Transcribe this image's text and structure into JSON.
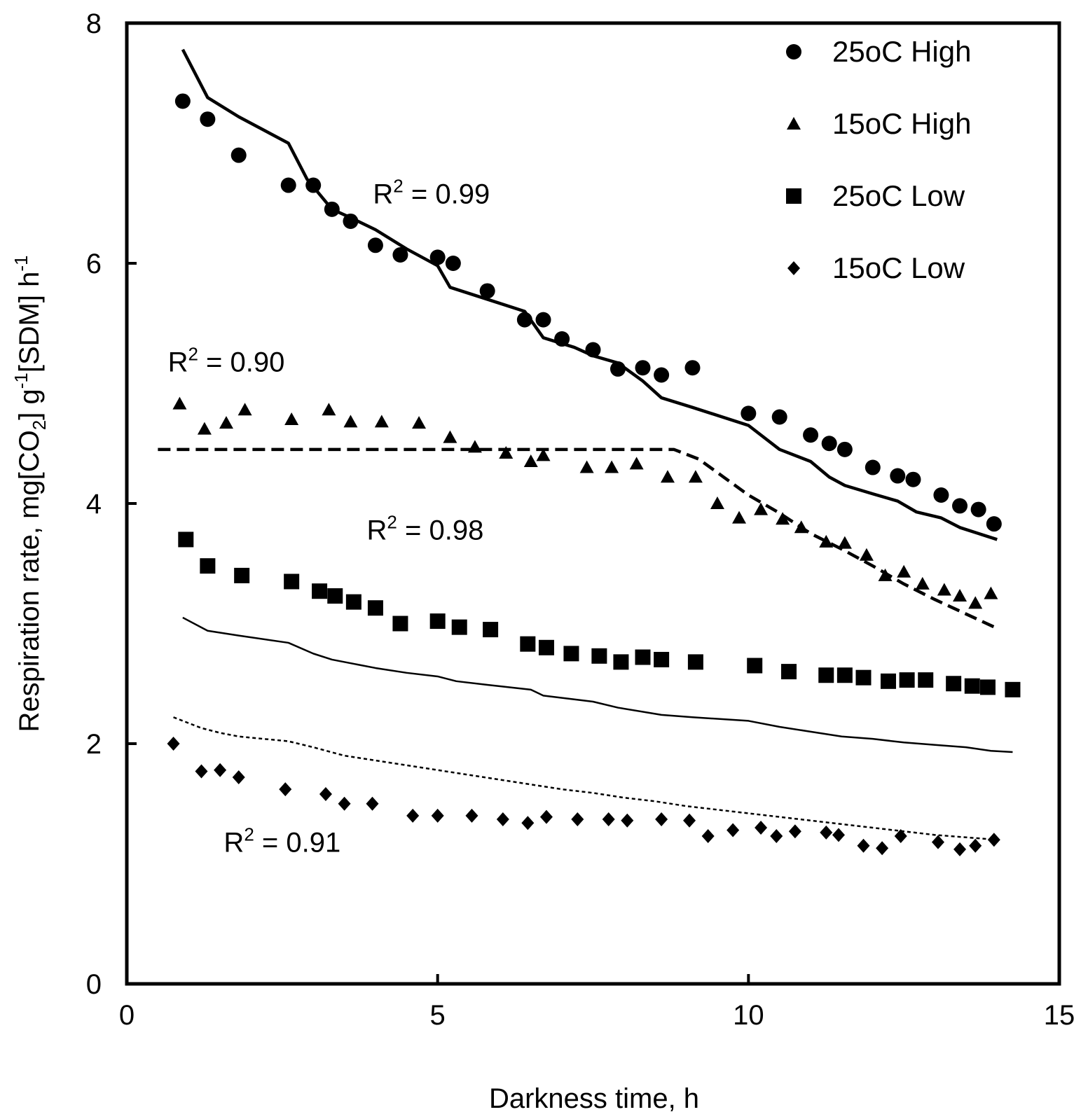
{
  "chart_data": {
    "type": "scatter",
    "title": "",
    "xlabel": "Darkness time, h",
    "ylabel": "Respiration rate, mg[CO2] g-1[SDM] h-1",
    "ylabel_parts": {
      "a": "Respiration rate, mg[CO",
      "sub2": "2",
      "b": "] g",
      "sup1": "-1",
      "c": "[SDM] h",
      "sup2": "-1"
    },
    "xlim": [
      0,
      15
    ],
    "ylim": [
      0,
      8
    ],
    "xticks": [
      0,
      5,
      10,
      15
    ],
    "yticks": [
      0,
      2,
      4,
      6,
      8
    ],
    "xtick_labels": [
      "0",
      "5",
      "10",
      "15"
    ],
    "ytick_labels": [
      "0",
      "2",
      "4",
      "6",
      "8"
    ],
    "grid": false,
    "legend_position": "top-right",
    "series": [
      {
        "name": "25oC High",
        "marker": "circle",
        "x": [
          0.9,
          1.3,
          1.8,
          2.6,
          3.0,
          3.3,
          3.6,
          4.0,
          4.4,
          5.0,
          5.25,
          5.8,
          6.4,
          6.7,
          7.0,
          7.5,
          7.9,
          8.3,
          8.6,
          9.1,
          10.0,
          10.5,
          11.0,
          11.3,
          11.55,
          12.0,
          12.4,
          12.65,
          13.1,
          13.4,
          13.7,
          13.95
        ],
        "y": [
          7.35,
          7.2,
          6.9,
          6.65,
          6.65,
          6.45,
          6.35,
          6.15,
          6.07,
          6.05,
          6.0,
          5.77,
          5.53,
          5.53,
          5.37,
          5.28,
          5.12,
          5.13,
          5.07,
          5.13,
          4.75,
          4.72,
          4.57,
          4.5,
          4.45,
          4.3,
          4.23,
          4.2,
          4.07,
          3.98,
          3.95,
          3.83
        ]
      },
      {
        "name": "15oC High",
        "marker": "triangle",
        "x": [
          0.85,
          1.25,
          1.6,
          1.9,
          2.65,
          3.25,
          3.6,
          4.1,
          4.7,
          5.2,
          5.6,
          6.1,
          6.5,
          6.7,
          7.4,
          7.8,
          8.2,
          8.7,
          9.15,
          9.5,
          9.85,
          10.2,
          10.55,
          10.85,
          11.25,
          11.55,
          11.9,
          12.2,
          12.5,
          12.8,
          13.15,
          13.4,
          13.65,
          13.9
        ],
        "y": [
          4.83,
          4.62,
          4.67,
          4.78,
          4.7,
          4.78,
          4.68,
          4.68,
          4.67,
          4.55,
          4.47,
          4.42,
          4.35,
          4.4,
          4.3,
          4.3,
          4.33,
          4.22,
          4.22,
          4.0,
          3.88,
          3.95,
          3.87,
          3.8,
          3.68,
          3.67,
          3.57,
          3.4,
          3.43,
          3.33,
          3.28,
          3.23,
          3.17,
          3.25
        ]
      },
      {
        "name": "25oC Low",
        "marker": "square",
        "x": [
          0.95,
          1.3,
          1.85,
          2.65,
          3.1,
          3.35,
          3.65,
          4.0,
          4.4,
          5.0,
          5.35,
          5.85,
          6.45,
          6.75,
          7.15,
          7.6,
          7.95,
          8.3,
          8.6,
          9.15,
          10.1,
          10.65,
          11.25,
          11.55,
          11.85,
          12.25,
          12.55,
          12.85,
          13.3,
          13.6,
          13.85,
          14.25
        ],
        "y": [
          3.7,
          3.48,
          3.4,
          3.35,
          3.27,
          3.23,
          3.18,
          3.13,
          3.0,
          3.02,
          2.97,
          2.95,
          2.83,
          2.8,
          2.75,
          2.73,
          2.68,
          2.72,
          2.7,
          2.68,
          2.65,
          2.6,
          2.57,
          2.57,
          2.55,
          2.52,
          2.53,
          2.53,
          2.5,
          2.48,
          2.47,
          2.45
        ]
      },
      {
        "name": "15oC Low",
        "marker": "diamond",
        "x": [
          0.75,
          1.2,
          1.5,
          1.8,
          2.55,
          3.2,
          3.5,
          3.95,
          4.6,
          5.0,
          5.55,
          6.05,
          6.45,
          6.75,
          7.25,
          7.75,
          8.05,
          8.6,
          9.05,
          9.35,
          9.75,
          10.2,
          10.45,
          10.75,
          11.25,
          11.45,
          11.85,
          12.15,
          12.45,
          13.05,
          13.4,
          13.65,
          13.95
        ],
        "y": [
          2.0,
          1.77,
          1.78,
          1.72,
          1.62,
          1.58,
          1.5,
          1.5,
          1.4,
          1.4,
          1.4,
          1.37,
          1.34,
          1.39,
          1.37,
          1.37,
          1.36,
          1.37,
          1.36,
          1.23,
          1.28,
          1.3,
          1.23,
          1.27,
          1.26,
          1.24,
          1.15,
          1.13,
          1.23,
          1.18,
          1.12,
          1.15,
          1.2
        ]
      }
    ],
    "fit_lines": [
      {
        "name": "25oC High fit",
        "style": "solid-thick",
        "x": [
          0.9,
          1.3,
          1.8,
          2.6,
          2.9,
          3.3,
          3.6,
          4.0,
          4.5,
          5.0,
          5.2,
          5.8,
          6.4,
          6.7,
          7.2,
          7.5,
          7.9,
          8.3,
          8.6,
          9.1,
          10.0,
          10.5,
          11.0,
          11.3,
          11.55,
          12.0,
          12.4,
          12.7,
          13.1,
          13.4,
          13.7,
          14.0
        ],
        "y": [
          7.78,
          7.38,
          7.22,
          7.0,
          6.7,
          6.45,
          6.38,
          6.28,
          6.12,
          5.98,
          5.8,
          5.7,
          5.6,
          5.38,
          5.3,
          5.23,
          5.17,
          5.02,
          4.88,
          4.8,
          4.65,
          4.45,
          4.35,
          4.22,
          4.15,
          4.08,
          4.02,
          3.93,
          3.88,
          3.8,
          3.75,
          3.7
        ]
      },
      {
        "name": "15oC High fit",
        "style": "dashed-thick",
        "x": [
          0.5,
          8.8,
          9.2,
          9.6,
          10.0,
          10.5,
          11.0,
          11.5,
          12.0,
          12.5,
          13.0,
          13.5,
          14.0
        ],
        "y": [
          4.45,
          4.45,
          4.37,
          4.22,
          4.07,
          3.92,
          3.75,
          3.62,
          3.48,
          3.33,
          3.2,
          3.08,
          2.96
        ]
      },
      {
        "name": "25oC Low fit",
        "style": "solid-thin",
        "x": [
          0.9,
          1.3,
          1.8,
          2.6,
          3.0,
          3.3,
          4.0,
          4.5,
          5.0,
          5.3,
          5.8,
          6.5,
          6.7,
          7.5,
          7.9,
          8.6,
          9.1,
          10.0,
          10.5,
          11.0,
          11.5,
          12.0,
          12.5,
          13.0,
          13.5,
          13.9,
          14.25
        ],
        "y": [
          3.05,
          2.94,
          2.9,
          2.84,
          2.75,
          2.7,
          2.63,
          2.59,
          2.56,
          2.52,
          2.49,
          2.45,
          2.4,
          2.35,
          2.3,
          2.24,
          2.22,
          2.19,
          2.14,
          2.1,
          2.06,
          2.04,
          2.01,
          1.99,
          1.97,
          1.94,
          1.93
        ]
      },
      {
        "name": "15oC Low fit",
        "style": "dotted",
        "x": [
          0.75,
          1.2,
          1.5,
          1.8,
          2.6,
          3.0,
          3.5,
          4.0,
          4.5,
          5.0,
          5.5,
          6.0,
          6.5,
          7.0,
          7.5,
          8.0,
          8.5,
          9.0,
          9.5,
          10.0,
          10.5,
          11.0,
          11.5,
          12.0,
          12.5,
          13.0,
          13.5,
          14.0
        ],
        "y": [
          2.22,
          2.13,
          2.09,
          2.06,
          2.02,
          1.97,
          1.9,
          1.86,
          1.82,
          1.78,
          1.74,
          1.7,
          1.66,
          1.62,
          1.59,
          1.55,
          1.52,
          1.48,
          1.45,
          1.42,
          1.39,
          1.36,
          1.33,
          1.3,
          1.27,
          1.24,
          1.22,
          1.2
        ]
      }
    ],
    "annotations": [
      {
        "id": "r2-25high",
        "prefix": "R",
        "sup": "2",
        "suffix": " = 0.99",
        "at_x": 4.9,
        "at_y": 6.5
      },
      {
        "id": "r2-15high",
        "prefix": "R",
        "sup": "2",
        "suffix": " = 0.90",
        "at_x": 1.6,
        "at_y": 5.1
      },
      {
        "id": "r2-25low",
        "prefix": "R",
        "sup": "2",
        "suffix": " = 0.98",
        "at_x": 4.8,
        "at_y": 3.7
      },
      {
        "id": "r2-15low",
        "prefix": "R",
        "sup": "2",
        "suffix": " = 0.91",
        "at_x": 2.5,
        "at_y": 1.1
      }
    ]
  }
}
